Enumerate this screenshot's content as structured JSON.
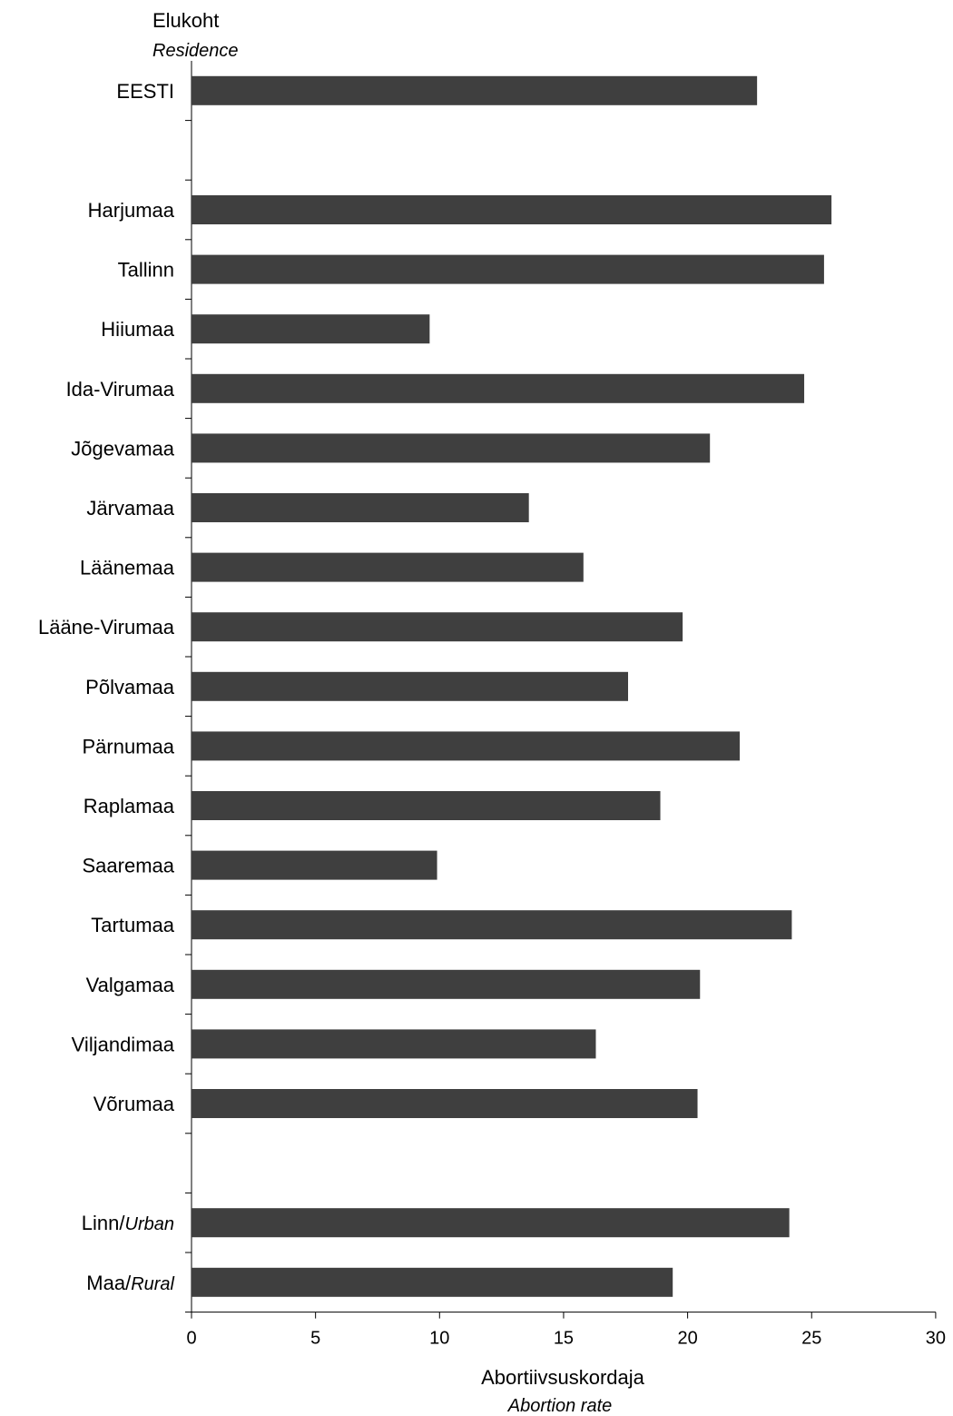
{
  "chart_data": {
    "type": "bar",
    "orientation": "horizontal",
    "y_title": "Elukoht",
    "y_title_en": "Residence",
    "x_title": "Abortiivsuskordaja",
    "x_title_en": "Abortion rate",
    "xlim": [
      0,
      30
    ],
    "x_ticks": [
      "0",
      "5",
      "10",
      "15",
      "20",
      "25",
      "30"
    ],
    "grid": false,
    "bar_color": "#3f3f3f",
    "categories": [
      {
        "label": "EESTI",
        "value": 22.8
      },
      {
        "label": "",
        "value": null
      },
      {
        "label": "Harjumaa",
        "value": 25.8
      },
      {
        "label": "Tallinn",
        "value": 25.5
      },
      {
        "label": "Hiiumaa",
        "value": 9.6
      },
      {
        "label": "Ida-Virumaa",
        "value": 24.7
      },
      {
        "label": "Jõgevamaa",
        "value": 20.9
      },
      {
        "label": "Järvamaa",
        "value": 13.6
      },
      {
        "label": "Läänemaa",
        "value": 15.8
      },
      {
        "label": "Lääne-Virumaa",
        "value": 19.8
      },
      {
        "label": "Põlvamaa",
        "value": 17.6
      },
      {
        "label": "Pärnumaa",
        "value": 22.1
      },
      {
        "label": "Raplamaa",
        "value": 18.9
      },
      {
        "label": "Saaremaa",
        "value": 9.9
      },
      {
        "label": "Tartumaa",
        "value": 24.2
      },
      {
        "label": "Valgamaa",
        "value": 20.5
      },
      {
        "label": "Viljandimaa",
        "value": 16.3
      },
      {
        "label": "Võrumaa",
        "value": 20.4
      },
      {
        "label": "",
        "value": null
      },
      {
        "label": "Linn/",
        "label_en": "Urban",
        "value": 24.1
      },
      {
        "label": "Maa/",
        "label_en": "Rural",
        "value": 19.4
      }
    ]
  }
}
